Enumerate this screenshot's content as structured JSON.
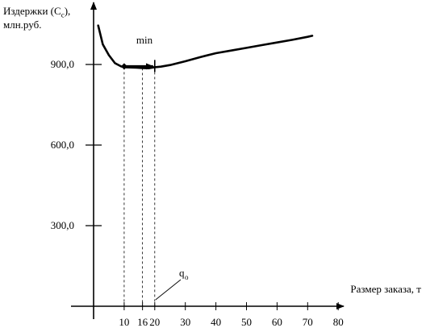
{
  "chart_data": {
    "type": "line",
    "ylabel_line1": "Издержки (C",
    "ylabel_sub": "c",
    "ylabel_line1_end": "),",
    "ylabel_line2": "млн.руб.",
    "xlabel": "Размер заказа, т",
    "x_ticks": [
      10,
      16,
      20,
      30,
      40,
      50,
      60,
      70,
      80
    ],
    "x_tick_labels": [
      "10",
      "16",
      "20",
      "30",
      "40",
      "50",
      "60",
      "70",
      "80"
    ],
    "y_ticks": [
      300,
      600,
      900
    ],
    "y_tick_labels": [
      "300,0",
      "600,0",
      "900,0"
    ],
    "xlim": [
      0,
      80
    ],
    "ylim": [
      0,
      1130
    ],
    "annotation_min": "min",
    "annotation_q": "q",
    "annotation_q_sub": "o",
    "curve": {
      "x": [
        1.5,
        3,
        5,
        7,
        9,
        10,
        12,
        14,
        16,
        18,
        20,
        22,
        25,
        30,
        35,
        40,
        45,
        50,
        55,
        60,
        65,
        70,
        71.5
      ],
      "y": [
        1045,
        975,
        935,
        905,
        893,
        890,
        889,
        888,
        887,
        886,
        890,
        892,
        898,
        912,
        928,
        942,
        952,
        962,
        972,
        982,
        992,
        1003,
        1007
      ]
    },
    "vlines_x": [
      10,
      16,
      20
    ],
    "min_marker_x": 10,
    "min_bar_x": 20
  }
}
